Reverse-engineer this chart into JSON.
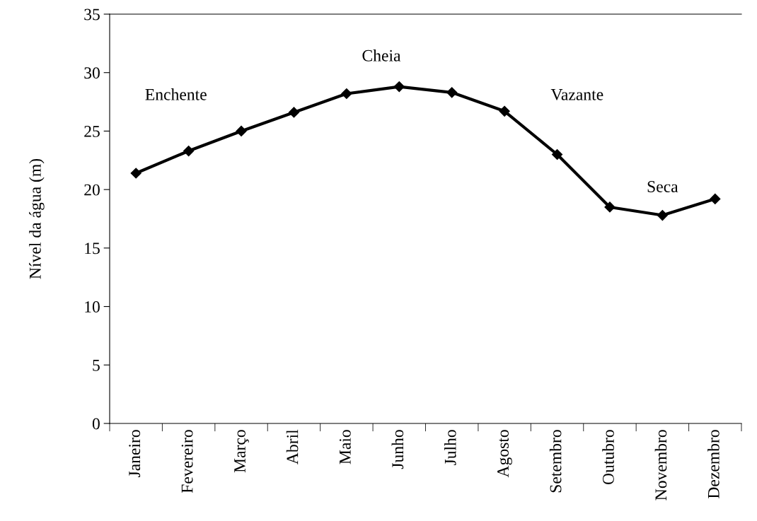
{
  "chart_data": {
    "type": "line",
    "ylabel": "Nível da água (m)",
    "categories": [
      "Janeiro",
      "Fevereiro",
      "Março",
      "Abril",
      "Maio",
      "Junho",
      "Julho",
      "Agosto",
      "Setembro",
      "Outubro",
      "Novembro",
      "Dezembro"
    ],
    "series": [
      {
        "color": "#000000",
        "values": [
          21.4,
          23.3,
          25.0,
          26.6,
          28.2,
          28.8,
          28.3,
          26.7,
          23.0,
          18.5,
          17.8,
          19.2
        ]
      }
    ],
    "ylim": [
      0,
      35
    ],
    "yticks": [
      0,
      5,
      10,
      15,
      20,
      25,
      30,
      35
    ],
    "marker": "diamond",
    "line_style": "solid",
    "grid": false,
    "legend": false,
    "annotations": [
      "Enchente",
      "Cheia",
      "Vazante",
      "Seca"
    ]
  }
}
